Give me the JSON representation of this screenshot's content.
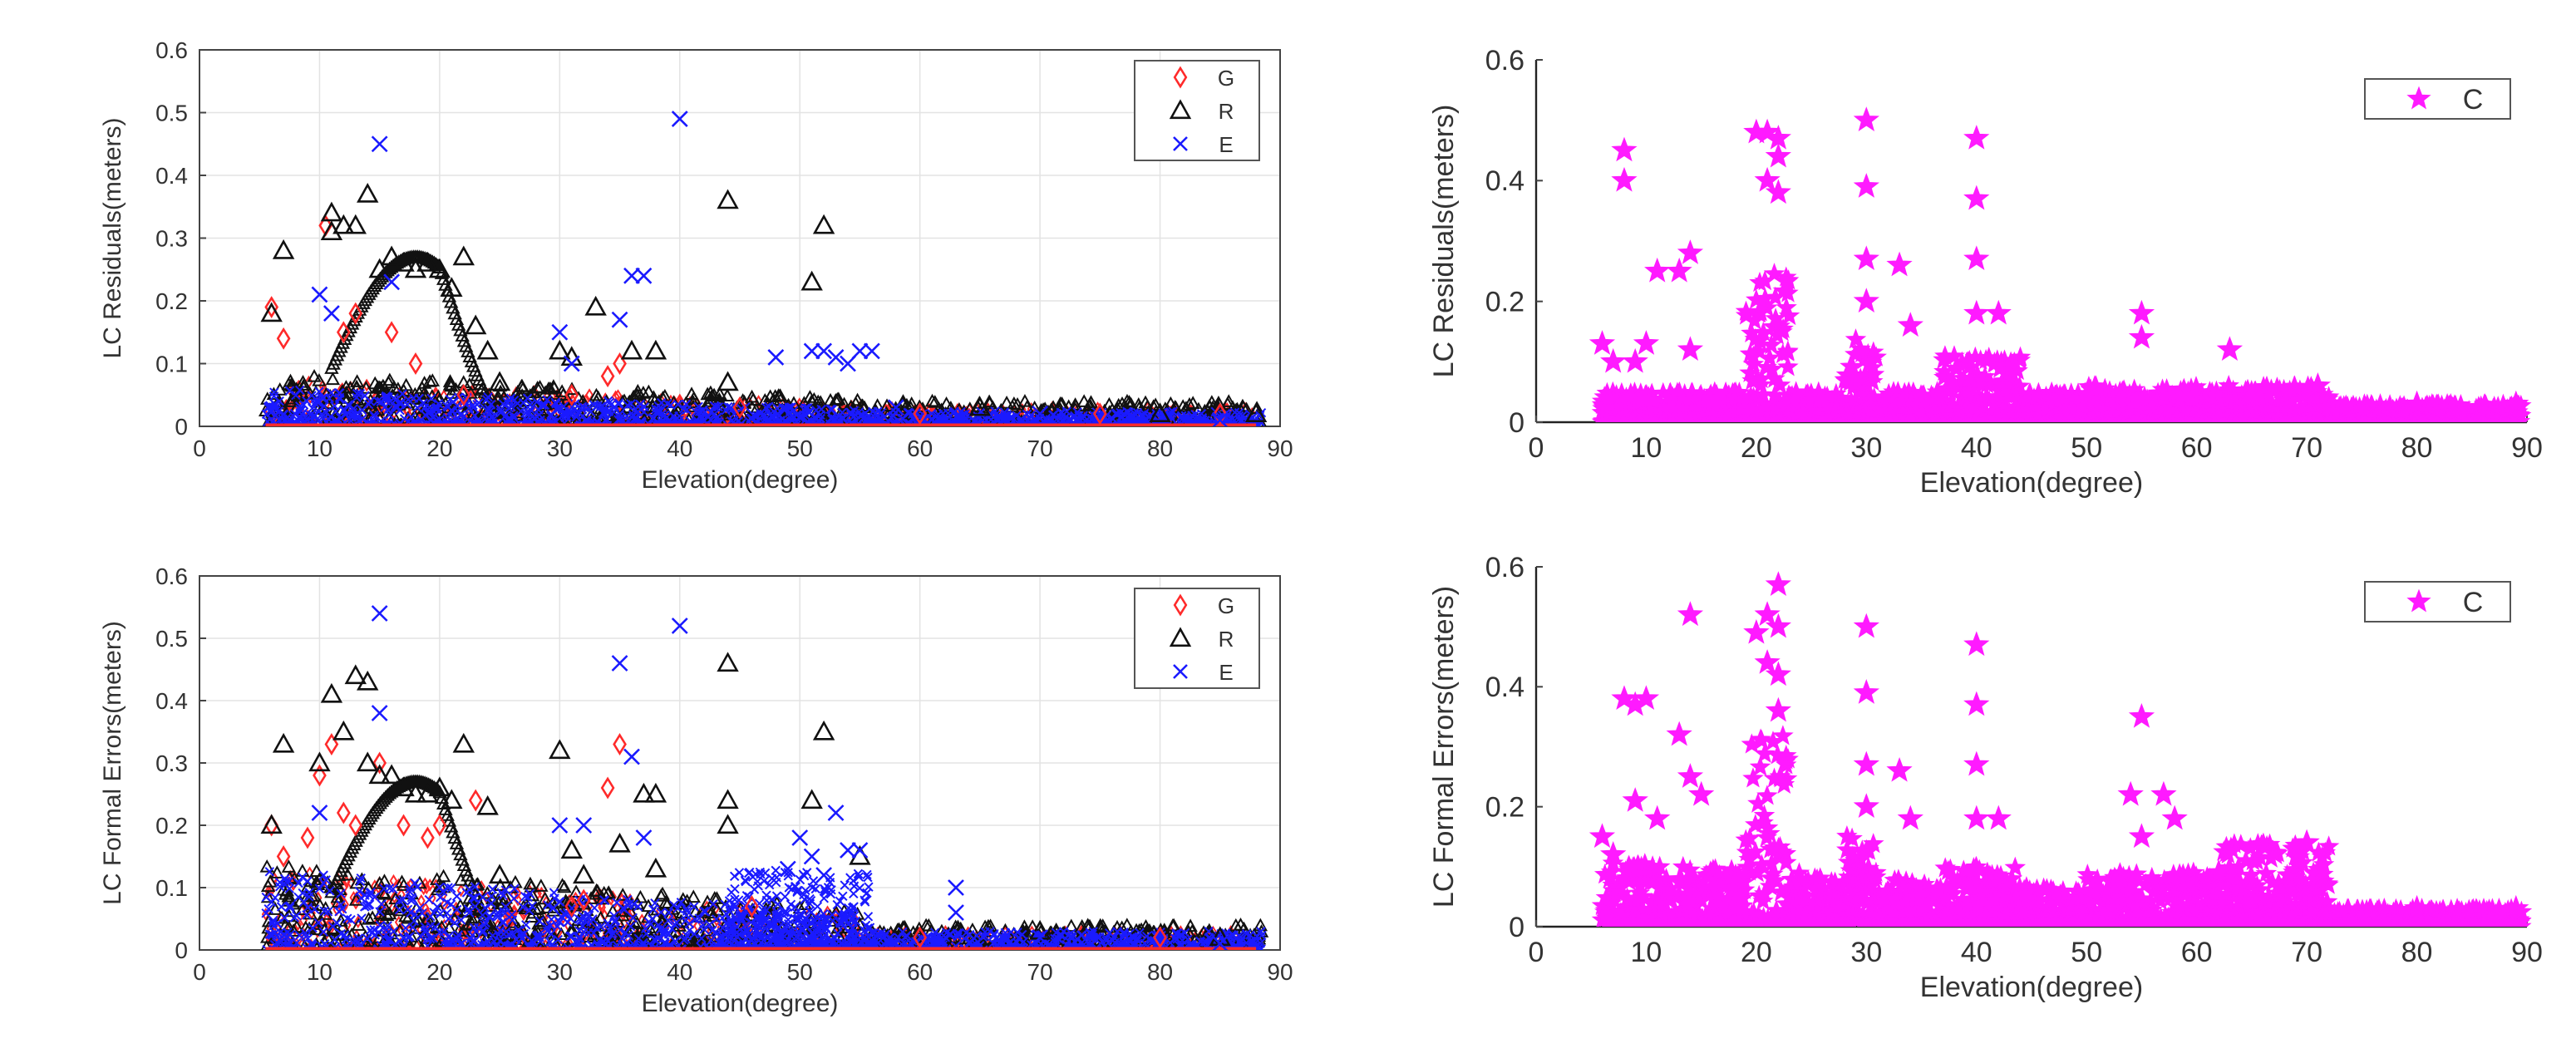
{
  "colors": {
    "G": "#ff2a2a",
    "R": "#111111",
    "E": "#1a1aff",
    "C": "#ff1aff",
    "grid": "#e3e3e3",
    "axes": "#222222"
  },
  "chart_data": [
    {
      "type": "scatter",
      "id": "p1",
      "title": "",
      "xlabel": "Elevation(degree)",
      "ylabel": "LC Residuals(meters)",
      "xlim": [
        0,
        90
      ],
      "ylim": [
        0,
        0.6
      ],
      "xticks": [
        0,
        10,
        20,
        30,
        40,
        50,
        60,
        70,
        80,
        90
      ],
      "yticks": [
        0,
        0.1,
        0.2,
        0.3,
        0.4,
        0.5,
        0.6
      ],
      "grid": true,
      "legend": "top-right",
      "series": [
        {
          "name": "G",
          "marker": "diamond",
          "points": [
            [
              6,
              0.19
            ],
            [
              7,
              0.14
            ],
            [
              10.5,
              0.32
            ],
            [
              12,
              0.15
            ],
            [
              13,
              0.18
            ],
            [
              16,
              0.15
            ],
            [
              18,
              0.1
            ],
            [
              22,
              0.05
            ],
            [
              31,
              0.05
            ],
            [
              34,
              0.08
            ],
            [
              35,
              0.1
            ],
            [
              45,
              0.03
            ],
            [
              60,
              0.02
            ],
            [
              75,
              0.02
            ],
            [
              85,
              0.02
            ]
          ]
        },
        {
          "name": "R",
          "marker": "triangle",
          "points": [
            [
              6,
              0.18
            ],
            [
              7,
              0.28
            ],
            [
              11,
              0.34
            ],
            [
              11,
              0.31
            ],
            [
              12,
              0.32
            ],
            [
              13,
              0.32
            ],
            [
              14,
              0.37
            ],
            [
              15,
              0.25
            ],
            [
              16,
              0.27
            ],
            [
              17,
              0.26
            ],
            [
              18,
              0.25
            ],
            [
              19,
              0.26
            ],
            [
              20,
              0.25
            ],
            [
              21,
              0.22
            ],
            [
              22,
              0.27
            ],
            [
              23,
              0.16
            ],
            [
              24,
              0.12
            ],
            [
              25,
              0.07
            ],
            [
              30,
              0.12
            ],
            [
              31,
              0.11
            ],
            [
              33,
              0.19
            ],
            [
              36,
              0.12
            ],
            [
              38,
              0.12
            ],
            [
              44,
              0.36
            ],
            [
              44,
              0.07
            ],
            [
              51,
              0.23
            ],
            [
              52,
              0.32
            ],
            [
              65,
              0.03
            ],
            [
              80,
              0.02
            ],
            [
              88,
              0.02
            ]
          ]
        },
        {
          "name": "E",
          "marker": "x",
          "points": [
            [
              10,
              0.21
            ],
            [
              11,
              0.18
            ],
            [
              15,
              0.45
            ],
            [
              16,
              0.23
            ],
            [
              30,
              0.15
            ],
            [
              31,
              0.1
            ],
            [
              35,
              0.17
            ],
            [
              36,
              0.24
            ],
            [
              37,
              0.24
            ],
            [
              40,
              0.49
            ],
            [
              48,
              0.11
            ],
            [
              51,
              0.12
            ],
            [
              52,
              0.12
            ],
            [
              53,
              0.11
            ],
            [
              54,
              0.1
            ],
            [
              55,
              0.12
            ],
            [
              56,
              0.12
            ],
            [
              58,
              0.03
            ],
            [
              70,
              0.02
            ],
            [
              85,
              0.01
            ]
          ]
        }
      ]
    },
    {
      "type": "scatter",
      "id": "p2",
      "title": "",
      "xlabel": "Elevation(degree)",
      "ylabel": "LC Formal Errors(meters)",
      "xlim": [
        0,
        90
      ],
      "ylim": [
        0,
        0.6
      ],
      "xticks": [
        0,
        10,
        20,
        30,
        40,
        50,
        60,
        70,
        80,
        90
      ],
      "yticks": [
        0,
        0.1,
        0.2,
        0.3,
        0.4,
        0.5,
        0.6
      ],
      "grid": true,
      "legend": "top-right",
      "series": [
        {
          "name": "G",
          "marker": "diamond",
          "points": [
            [
              6,
              0.2
            ],
            [
              7,
              0.15
            ],
            [
              9,
              0.18
            ],
            [
              10,
              0.28
            ],
            [
              11,
              0.33
            ],
            [
              12,
              0.22
            ],
            [
              13,
              0.2
            ],
            [
              15,
              0.3
            ],
            [
              17,
              0.2
            ],
            [
              19,
              0.18
            ],
            [
              20,
              0.2
            ],
            [
              23,
              0.24
            ],
            [
              31,
              0.07
            ],
            [
              32,
              0.08
            ],
            [
              35,
              0.33
            ],
            [
              34,
              0.26
            ],
            [
              46,
              0.07
            ],
            [
              60,
              0.02
            ],
            [
              80,
              0.02
            ]
          ]
        },
        {
          "name": "R",
          "marker": "triangle",
          "points": [
            [
              6,
              0.2
            ],
            [
              7,
              0.33
            ],
            [
              10,
              0.3
            ],
            [
              11,
              0.41
            ],
            [
              12,
              0.35
            ],
            [
              13,
              0.44
            ],
            [
              14,
              0.43
            ],
            [
              14,
              0.3
            ],
            [
              15,
              0.28
            ],
            [
              16,
              0.28
            ],
            [
              17,
              0.26
            ],
            [
              18,
              0.25
            ],
            [
              19,
              0.25
            ],
            [
              20,
              0.26
            ],
            [
              21,
              0.24
            ],
            [
              22,
              0.33
            ],
            [
              24,
              0.23
            ],
            [
              25,
              0.12
            ],
            [
              30,
              0.32
            ],
            [
              31,
              0.16
            ],
            [
              32,
              0.12
            ],
            [
              35,
              0.17
            ],
            [
              37,
              0.25
            ],
            [
              38,
              0.25
            ],
            [
              38,
              0.13
            ],
            [
              44,
              0.46
            ],
            [
              44,
              0.24
            ],
            [
              44,
              0.2
            ],
            [
              51,
              0.24
            ],
            [
              52,
              0.35
            ],
            [
              55,
              0.15
            ],
            [
              70,
              0.03
            ],
            [
              85,
              0.02
            ]
          ]
        },
        {
          "name": "E",
          "marker": "x",
          "points": [
            [
              10,
              0.22
            ],
            [
              15,
              0.54
            ],
            [
              15,
              0.38
            ],
            [
              30,
              0.2
            ],
            [
              32,
              0.2
            ],
            [
              35,
              0.46
            ],
            [
              36,
              0.31
            ],
            [
              37,
              0.18
            ],
            [
              40,
              0.52
            ],
            [
              49,
              0.13
            ],
            [
              50,
              0.18
            ],
            [
              51,
              0.15
            ],
            [
              52,
              0.12
            ],
            [
              53,
              0.22
            ],
            [
              54,
              0.16
            ],
            [
              55,
              0.16
            ],
            [
              63,
              0.1
            ],
            [
              63,
              0.06
            ],
            [
              70,
              0.02
            ],
            [
              85,
              0.01
            ]
          ]
        }
      ]
    },
    {
      "type": "scatter",
      "id": "p3",
      "title": "",
      "xlabel": "Elevation(degree)",
      "ylabel": "LC Residuals(meters)",
      "xlim": [
        0,
        90
      ],
      "ylim": [
        0,
        0.6
      ],
      "xticks": [
        0,
        10,
        20,
        30,
        40,
        50,
        60,
        70,
        80,
        90
      ],
      "yticks": [
        0,
        0.2,
        0.4,
        0.6
      ],
      "grid": false,
      "legend": "top-right",
      "series": [
        {
          "name": "C",
          "marker": "star",
          "points": [
            [
              6,
              0.13
            ],
            [
              7,
              0.1
            ],
            [
              8,
              0.45
            ],
            [
              8,
              0.4
            ],
            [
              9,
              0.1
            ],
            [
              10,
              0.13
            ],
            [
              11,
              0.25
            ],
            [
              13,
              0.25
            ],
            [
              14,
              0.28
            ],
            [
              14,
              0.12
            ],
            [
              20,
              0.48
            ],
            [
              21,
              0.4
            ],
            [
              21,
              0.48
            ],
            [
              22,
              0.47
            ],
            [
              22,
              0.44
            ],
            [
              22,
              0.38
            ],
            [
              30,
              0.5
            ],
            [
              30,
              0.39
            ],
            [
              30,
              0.27
            ],
            [
              30,
              0.2
            ],
            [
              33,
              0.26
            ],
            [
              34,
              0.16
            ],
            [
              40,
              0.47
            ],
            [
              40,
              0.37
            ],
            [
              40,
              0.27
            ],
            [
              40,
              0.18
            ],
            [
              42,
              0.18
            ],
            [
              55,
              0.18
            ],
            [
              55,
              0.14
            ],
            [
              63,
              0.12
            ],
            [
              71,
              0.06
            ],
            [
              80,
              0.03
            ],
            [
              89,
              0.03
            ]
          ]
        }
      ]
    },
    {
      "type": "scatter",
      "id": "p4",
      "title": "",
      "xlabel": "Elevation(degree)",
      "ylabel": "LC Formal Errors(meters)",
      "xlim": [
        0,
        90
      ],
      "ylim": [
        0,
        0.6
      ],
      "xticks": [
        0,
        10,
        20,
        30,
        40,
        50,
        60,
        70,
        80,
        90
      ],
      "yticks": [
        0,
        0.2,
        0.4,
        0.6
      ],
      "grid": false,
      "legend": "top-right",
      "series": [
        {
          "name": "C",
          "marker": "star",
          "points": [
            [
              6,
              0.15
            ],
            [
              7,
              0.12
            ],
            [
              8,
              0.38
            ],
            [
              9,
              0.37
            ],
            [
              9,
              0.21
            ],
            [
              10,
              0.38
            ],
            [
              11,
              0.18
            ],
            [
              13,
              0.32
            ],
            [
              14,
              0.25
            ],
            [
              14,
              0.52
            ],
            [
              15,
              0.22
            ],
            [
              20,
              0.49
            ],
            [
              21,
              0.52
            ],
            [
              21,
              0.44
            ],
            [
              22,
              0.57
            ],
            [
              22,
              0.5
            ],
            [
              22,
              0.42
            ],
            [
              22,
              0.36
            ],
            [
              30,
              0.5
            ],
            [
              30,
              0.39
            ],
            [
              30,
              0.27
            ],
            [
              30,
              0.2
            ],
            [
              33,
              0.26
            ],
            [
              34,
              0.18
            ],
            [
              40,
              0.47
            ],
            [
              40,
              0.37
            ],
            [
              40,
              0.27
            ],
            [
              40,
              0.18
            ],
            [
              42,
              0.18
            ],
            [
              54,
              0.22
            ],
            [
              55,
              0.35
            ],
            [
              55,
              0.15
            ],
            [
              57,
              0.22
            ],
            [
              58,
              0.18
            ],
            [
              62,
              0.09
            ],
            [
              70,
              0.14
            ],
            [
              80,
              0.03
            ],
            [
              89,
              0.03
            ]
          ]
        }
      ]
    }
  ]
}
